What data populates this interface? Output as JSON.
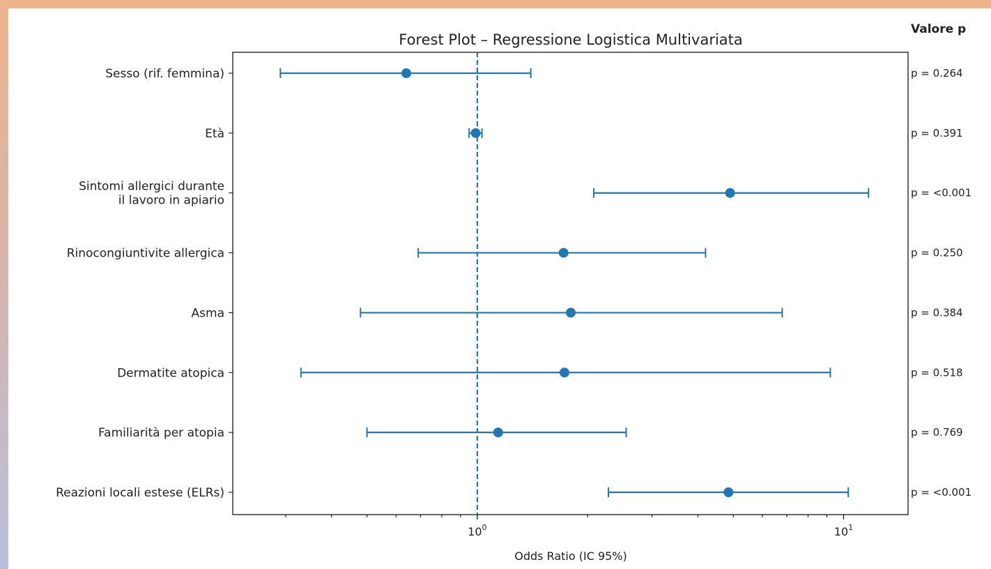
{
  "chart_data": {
    "type": "forest",
    "title": "Forest Plot – Regressione Logistica Multivariata",
    "xlabel": "Odds Ratio (IC 95%)",
    "x_scale": "log",
    "xlim": [
      0.215,
      15
    ],
    "x_ticks": [
      {
        "value": 1,
        "base": "10",
        "exp": "0"
      },
      {
        "value": 10,
        "base": "10",
        "exp": "1"
      }
    ],
    "reference_line": 1,
    "pvalue_header": "Valore p",
    "accent_color": "#1f77b4",
    "rows": [
      {
        "label": [
          "Sesso (rif. femmina)"
        ],
        "or": 0.64,
        "lo": 0.29,
        "hi": 1.4,
        "p": "p = 0.264"
      },
      {
        "label": [
          "Età"
        ],
        "or": 0.99,
        "lo": 0.95,
        "hi": 1.03,
        "p": "p = 0.391"
      },
      {
        "label": [
          "Sintomi allergici durante",
          "il lavoro in apiario"
        ],
        "or": 4.9,
        "lo": 2.08,
        "hi": 11.7,
        "p": "p = <0.001"
      },
      {
        "label": [
          "Rinocongiuntivite allergica"
        ],
        "or": 1.72,
        "lo": 0.69,
        "hi": 4.2,
        "p": "p = 0.250"
      },
      {
        "label": [
          "Asma"
        ],
        "or": 1.8,
        "lo": 0.48,
        "hi": 6.8,
        "p": "p = 0.384"
      },
      {
        "label": [
          "Dermatite atopica"
        ],
        "or": 1.73,
        "lo": 0.33,
        "hi": 9.2,
        "p": "p = 0.518"
      },
      {
        "label": [
          "Familiarità per atopia"
        ],
        "or": 1.14,
        "lo": 0.5,
        "hi": 2.55,
        "p": "p = 0.769"
      },
      {
        "label": [
          "Reazioni locali estese (ELRs)"
        ],
        "or": 4.85,
        "lo": 2.28,
        "hi": 10.3,
        "p": "p = <0.001"
      }
    ]
  }
}
